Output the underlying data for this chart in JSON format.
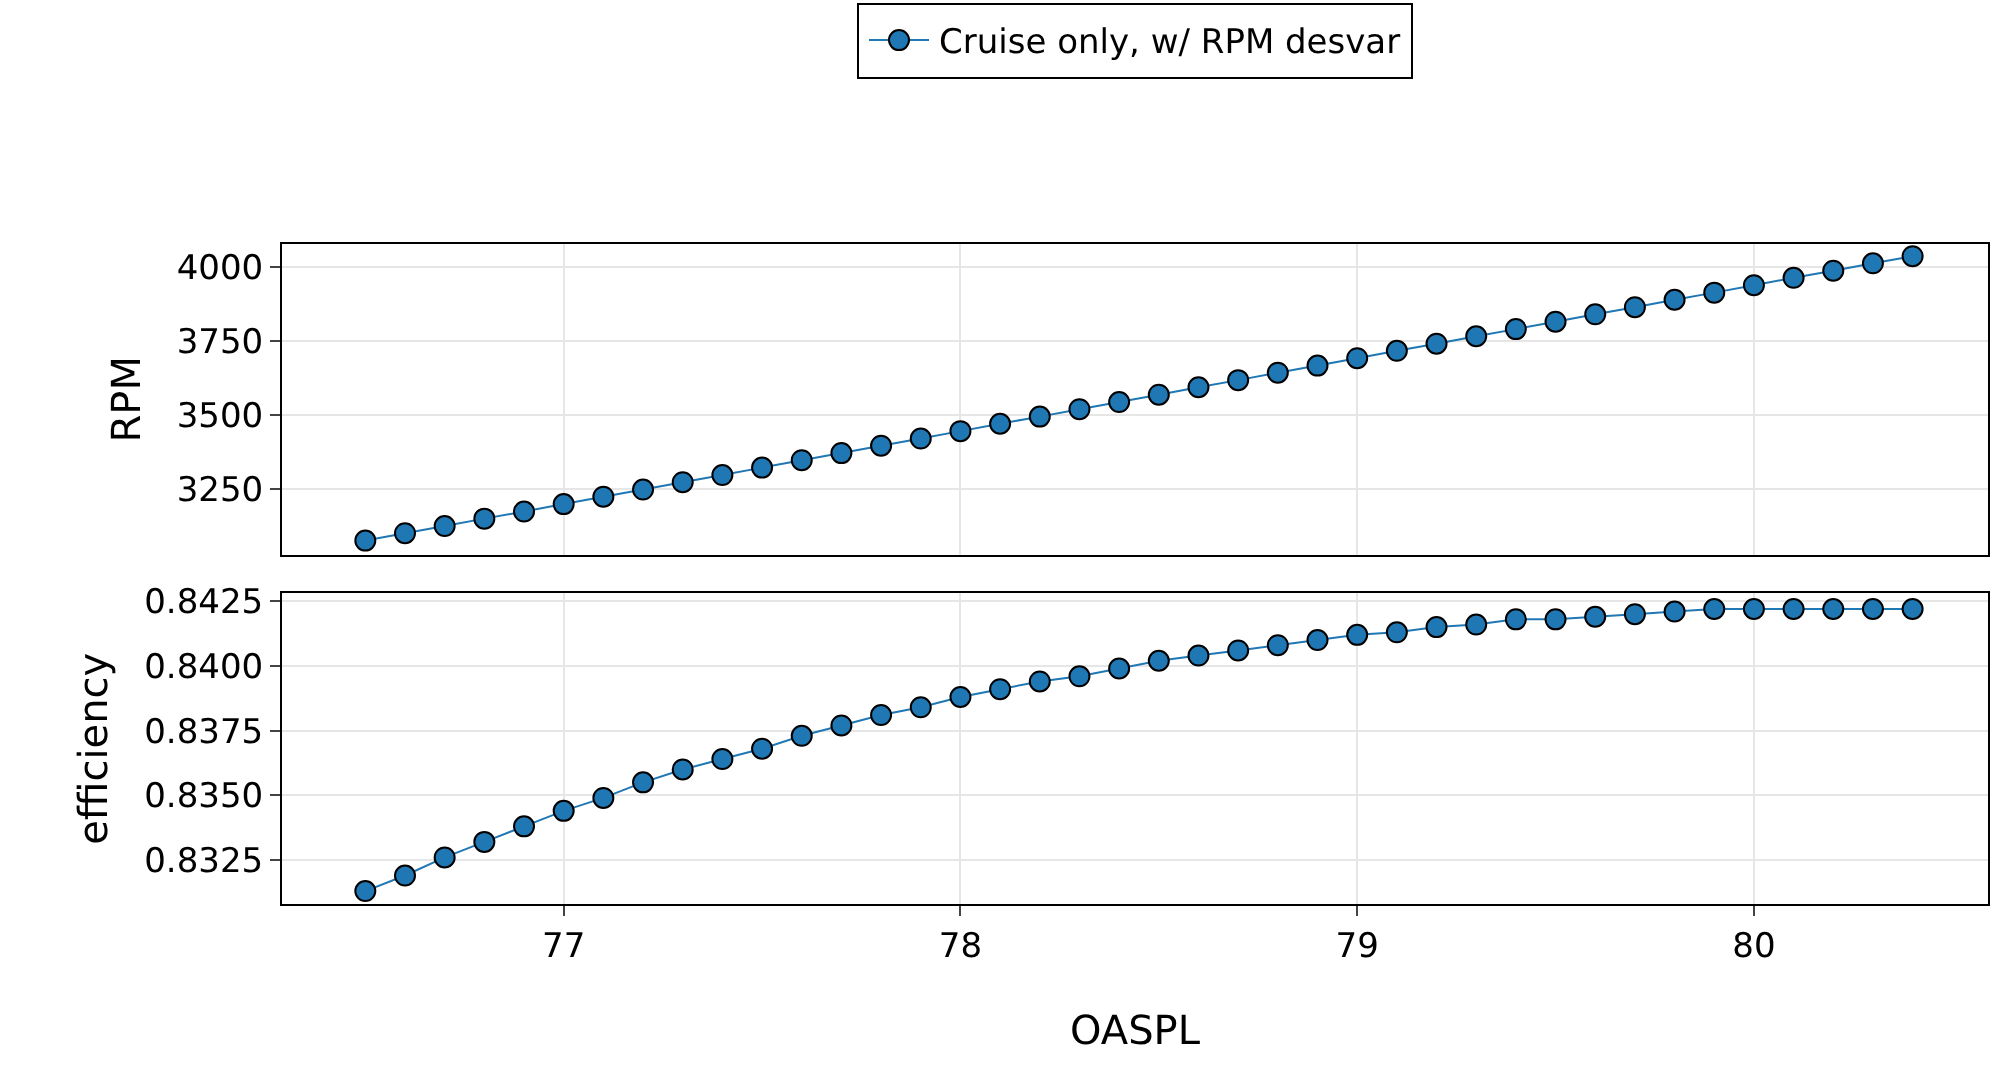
{
  "chart_data": [
    {
      "type": "line",
      "ylabel": "RPM",
      "xlim": [
        76.29,
        80.59
      ],
      "xticks": [
        77,
        78,
        79,
        80
      ],
      "ylim": [
        3030,
        4077
      ],
      "yticks": [
        3250,
        3500,
        3750,
        4000
      ],
      "grid": true,
      "legend": "top",
      "marker": "circle",
      "line_style": "solid",
      "tick_labels": "y",
      "x": [
        76.5,
        76.6,
        76.7,
        76.8,
        76.9,
        77.0,
        77.1,
        77.2,
        77.3,
        77.4,
        77.5,
        77.6,
        77.7,
        77.8,
        77.9,
        78.0,
        78.1,
        78.2,
        78.3,
        78.4,
        78.5,
        78.6,
        78.7,
        78.8,
        78.9,
        79.0,
        79.1,
        79.2,
        79.3,
        79.4,
        79.5,
        79.6,
        79.7,
        79.8,
        79.9,
        80.0,
        80.1,
        80.2,
        80.3,
        80.4
      ],
      "series": [
        {
          "name": "Cruise only, w/ RPM desvar",
          "color": "#1f77b4",
          "values": [
            3077,
            3102,
            3126,
            3151,
            3175,
            3200,
            3225,
            3249,
            3274,
            3298,
            3323,
            3348,
            3372,
            3397,
            3421,
            3446,
            3471,
            3495,
            3520,
            3544,
            3569,
            3594,
            3618,
            3643,
            3667,
            3692,
            3717,
            3741,
            3766,
            3790,
            3815,
            3840,
            3864,
            3889,
            3913,
            3938,
            3963,
            3987,
            4012,
            4036
          ]
        }
      ]
    },
    {
      "type": "line",
      "ylabel": "efficiency",
      "xlabel": "OASPL",
      "xlim": [
        76.29,
        80.59
      ],
      "xticks": [
        77,
        78,
        79,
        80
      ],
      "ylim": [
        0.8308,
        0.8428
      ],
      "yticks": [
        0.8325,
        {
          "value": 0.835,
          "label": "0.8350"
        },
        0.8375,
        {
          "value": 0.84,
          "label": "0.8400"
        },
        0.8425
      ],
      "grid": true,
      "marker": "circle",
      "line_style": "solid",
      "x": [
        76.5,
        76.6,
        76.7,
        76.8,
        76.9,
        77.0,
        77.1,
        77.2,
        77.3,
        77.4,
        77.5,
        77.6,
        77.7,
        77.8,
        77.9,
        78.0,
        78.1,
        78.2,
        78.3,
        78.4,
        78.5,
        78.6,
        78.7,
        78.8,
        78.9,
        79.0,
        79.1,
        79.2,
        79.3,
        79.4,
        79.5,
        79.6,
        79.7,
        79.8,
        79.9,
        80.0,
        80.1,
        80.2,
        80.3,
        80.4
      ],
      "series": [
        {
          "color": "#1f77b4",
          "values": [
            0.8313,
            0.8319,
            0.8326,
            0.8332,
            0.8338,
            0.8344,
            0.8349,
            0.8355,
            0.836,
            0.8364,
            0.8368,
            0.8373,
            0.8377,
            0.8381,
            0.8384,
            0.8388,
            0.8391,
            0.8394,
            0.8396,
            0.8399,
            0.8402,
            0.8404,
            0.8406,
            0.8408,
            0.841,
            0.8412,
            0.8413,
            0.8415,
            0.8416,
            0.8418,
            0.8418,
            0.8419,
            0.842,
            0.8421,
            0.8422,
            0.8422,
            0.8422,
            0.8422,
            0.8422,
            0.8422
          ]
        }
      ]
    }
  ]
}
